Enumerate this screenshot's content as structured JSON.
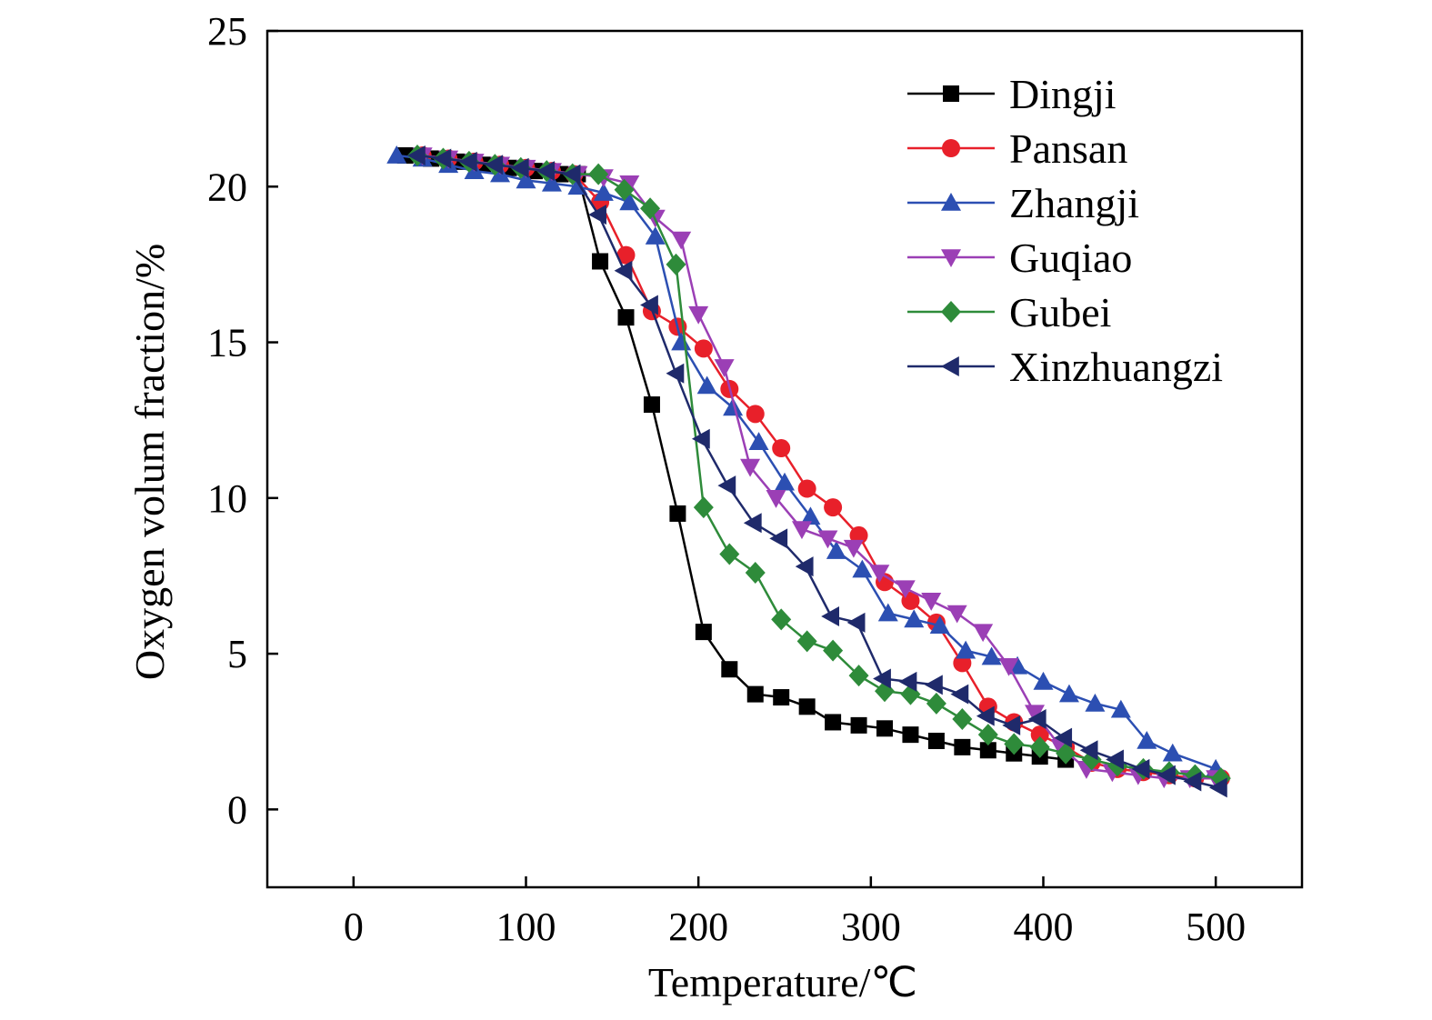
{
  "chart_data": {
    "type": "line",
    "xlabel": "Temperature/℃",
    "ylabel": "Oxygen volum fraction/%",
    "xlim": [
      -50,
      550
    ],
    "ylim": [
      -2.5,
      25
    ],
    "xticks": [
      0,
      100,
      200,
      300,
      400,
      500
    ],
    "yticks": [
      0,
      5,
      10,
      15,
      20,
      25
    ],
    "grid": false,
    "legend_position": "top-right",
    "series": [
      {
        "name": "Dingji",
        "color": "#000000",
        "marker": "square",
        "x": [
          30,
          45,
          60,
          75,
          90,
          105,
          120,
          130,
          143,
          158,
          173,
          188,
          203,
          218,
          233,
          248,
          263,
          278,
          293,
          308,
          323,
          338,
          353,
          368,
          383,
          398,
          413
        ],
        "y": [
          21.0,
          20.9,
          20.8,
          20.7,
          20.6,
          20.5,
          20.4,
          20.4,
          17.6,
          15.8,
          13.0,
          9.5,
          5.7,
          4.5,
          3.7,
          3.6,
          3.3,
          2.8,
          2.7,
          2.6,
          2.4,
          2.2,
          2.0,
          1.9,
          1.8,
          1.7,
          1.6
        ]
      },
      {
        "name": "Pansan",
        "color": "#e8202a",
        "marker": "circle",
        "x": [
          40,
          55,
          70,
          85,
          100,
          115,
          128,
          143,
          158,
          173,
          188,
          203,
          218,
          233,
          248,
          263,
          278,
          293,
          308,
          323,
          338,
          353,
          368,
          383,
          398,
          413,
          428,
          443,
          458,
          473,
          488,
          503
        ],
        "y": [
          21.0,
          20.9,
          20.8,
          20.7,
          20.6,
          20.5,
          20.4,
          19.5,
          17.8,
          16.0,
          15.5,
          14.8,
          13.5,
          12.7,
          11.6,
          10.3,
          9.7,
          8.8,
          7.3,
          6.7,
          6.0,
          4.7,
          3.3,
          2.8,
          2.4,
          2.0,
          1.5,
          1.3,
          1.2,
          1.1,
          1.0,
          1.0
        ]
      },
      {
        "name": "Zhangji",
        "color": "#2c4fb2",
        "marker": "triangle-up",
        "x": [
          25,
          40,
          55,
          70,
          85,
          100,
          115,
          130,
          145,
          160,
          175,
          190,
          205,
          220,
          235,
          250,
          265,
          280,
          295,
          310,
          325,
          340,
          355,
          370,
          385,
          400,
          415,
          430,
          445,
          460,
          475,
          500
        ],
        "y": [
          21.0,
          20.9,
          20.7,
          20.5,
          20.4,
          20.2,
          20.1,
          20.0,
          19.8,
          19.5,
          18.4,
          15.0,
          13.6,
          12.9,
          11.8,
          10.5,
          9.4,
          8.3,
          7.7,
          6.3,
          6.1,
          5.9,
          5.1,
          4.9,
          4.6,
          4.1,
          3.7,
          3.4,
          3.2,
          2.2,
          1.8,
          1.3
        ]
      },
      {
        "name": "Guqiao",
        "color": "#9b3fb5",
        "marker": "triangle-down",
        "x": [
          40,
          55,
          70,
          85,
          100,
          115,
          130,
          145,
          160,
          175,
          190,
          200,
          215,
          230,
          245,
          260,
          275,
          290,
          305,
          320,
          335,
          350,
          365,
          380,
          395,
          410,
          425,
          440,
          455,
          470,
          485,
          500
        ],
        "y": [
          21.0,
          20.9,
          20.8,
          20.7,
          20.6,
          20.5,
          20.4,
          20.3,
          20.1,
          19.0,
          18.3,
          15.9,
          14.2,
          11.0,
          10.0,
          9.0,
          8.7,
          8.4,
          7.6,
          7.1,
          6.7,
          6.3,
          5.7,
          4.6,
          3.1,
          2.0,
          1.3,
          1.2,
          1.1,
          1.0,
          1.0,
          1.0
        ]
      },
      {
        "name": "Gubei",
        "color": "#2e8b3a",
        "marker": "diamond",
        "x": [
          37,
          52,
          67,
          82,
          97,
          112,
          127,
          142,
          157,
          172,
          187,
          203,
          218,
          233,
          248,
          263,
          278,
          293,
          308,
          323,
          338,
          353,
          368,
          383,
          398,
          413,
          428,
          443,
          458,
          473,
          488,
          503
        ],
        "y": [
          21.0,
          20.9,
          20.8,
          20.7,
          20.6,
          20.5,
          20.4,
          20.4,
          19.9,
          19.3,
          17.5,
          9.7,
          8.2,
          7.6,
          6.1,
          5.4,
          5.1,
          4.3,
          3.8,
          3.7,
          3.4,
          2.9,
          2.4,
          2.1,
          2.0,
          1.8,
          1.6,
          1.4,
          1.3,
          1.2,
          1.1,
          1.0
        ]
      },
      {
        "name": "Xinzhuangzi",
        "color": "#1f2a6b",
        "marker": "triangle-left",
        "x": [
          37,
          52,
          67,
          82,
          97,
          112,
          127,
          142,
          157,
          172,
          187,
          202,
          217,
          232,
          247,
          262,
          277,
          292,
          307,
          322,
          337,
          352,
          367,
          382,
          397,
          412,
          427,
          442,
          457,
          472,
          487,
          502
        ],
        "y": [
          21.0,
          20.9,
          20.8,
          20.7,
          20.6,
          20.5,
          20.4,
          19.1,
          17.3,
          16.2,
          14.0,
          11.9,
          10.4,
          9.2,
          8.7,
          7.8,
          6.2,
          6.0,
          4.2,
          4.1,
          4.0,
          3.7,
          3.0,
          2.7,
          2.9,
          2.3,
          1.9,
          1.6,
          1.3,
          1.1,
          0.9,
          0.7
        ]
      }
    ]
  }
}
